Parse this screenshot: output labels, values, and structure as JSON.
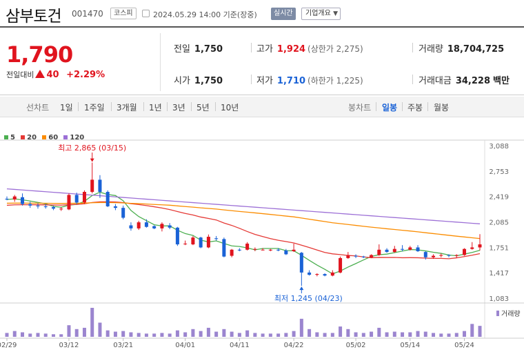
{
  "header": {
    "name": "삼부토건",
    "code": "001470",
    "market": "코스피",
    "date": "2024.05.29 14:00 기준(장중)",
    "realtime": "실시간",
    "corp_menu": "기업개요"
  },
  "quote": {
    "price": "1,790",
    "diff_label": "전일대비",
    "diff": "40",
    "rate": "+2.29%",
    "prev_close": {
      "label": "전일",
      "value": "1,750"
    },
    "open": {
      "label": "시가",
      "value": "1,750"
    },
    "high": {
      "label": "고가",
      "value": "1,924",
      "sub": "(상한가 2,275)"
    },
    "low": {
      "label": "저가",
      "value": "1,710",
      "sub": "(하한가 1,225)"
    },
    "volume": {
      "label": "거래량",
      "value": "18,704,725"
    },
    "amount": {
      "label": "거래대금",
      "value": "34,228",
      "unit": "백만"
    },
    "up_color": "#e0141e",
    "down_color": "#1a62d6"
  },
  "tabs": {
    "line_label": "선차트",
    "line": [
      "1일",
      "1주일",
      "3개월",
      "1년",
      "3년",
      "5년",
      "10년"
    ],
    "candle_label": "봉차트",
    "candle": [
      "일봉",
      "주봉",
      "월봉"
    ],
    "active": "일봉"
  },
  "chart_data": {
    "type": "candlestick",
    "legend": [
      {
        "label": "5",
        "color": "#4caf50"
      },
      {
        "label": "20",
        "color": "#e53935"
      },
      {
        "label": "60",
        "color": "#fb8c00"
      },
      {
        "label": "120",
        "color": "#9c6fd6"
      }
    ],
    "y_ticks": [
      "3,088",
      "2,753",
      "2,419",
      "2,085",
      "1,751",
      "1,417",
      "1,083"
    ],
    "y_range": [
      1083,
      3088
    ],
    "x_ticks": [
      "02/29",
      "03/12",
      "03/21",
      "04/01",
      "04/11",
      "04/22",
      "05/02",
      "05/14",
      "05/24"
    ],
    "high_annotation": "최고 2,865 (03/15)",
    "low_annotation": "최저 1,245 (04/23)",
    "volume_label": "거래량",
    "candles": [
      [
        2390,
        2420,
        2370,
        2380
      ],
      [
        2380,
        2440,
        2350,
        2420
      ],
      [
        2410,
        2460,
        2300,
        2320
      ],
      [
        2320,
        2350,
        2270,
        2300
      ],
      [
        2300,
        2330,
        2260,
        2290
      ],
      [
        2290,
        2320,
        2260,
        2280
      ],
      [
        2280,
        2300,
        2240,
        2260
      ],
      [
        2250,
        2280,
        2230,
        2260
      ],
      [
        2250,
        2460,
        2240,
        2440
      ],
      [
        2440,
        2470,
        2320,
        2340
      ],
      [
        2340,
        2500,
        2320,
        2480
      ],
      [
        2480,
        2865,
        2460,
        2640
      ],
      [
        2640,
        2700,
        2400,
        2480
      ],
      [
        2480,
        2500,
        2280,
        2290
      ],
      [
        2290,
        2320,
        2240,
        2270
      ],
      [
        2270,
        2300,
        2120,
        2140
      ],
      [
        2040,
        2080,
        1970,
        2000
      ],
      [
        2000,
        2100,
        1980,
        2080
      ],
      [
        2080,
        2120,
        2010,
        2020
      ],
      [
        2030,
        2040,
        1990,
        2000
      ],
      [
        2000,
        2080,
        1960,
        2060
      ],
      [
        2040,
        2070,
        1990,
        2010
      ],
      [
        2010,
        2020,
        1770,
        1790
      ],
      [
        1800,
        1840,
        1780,
        1800
      ],
      [
        1790,
        1900,
        1780,
        1880
      ],
      [
        1880,
        1890,
        1740,
        1750
      ],
      [
        1750,
        1920,
        1740,
        1890
      ],
      [
        1870,
        1900,
        1840,
        1860
      ],
      [
        1860,
        1880,
        1620,
        1630
      ],
      [
        1640,
        1730,
        1620,
        1720
      ],
      [
        1720,
        1740,
        1700,
        1710
      ],
      [
        1720,
        1820,
        1710,
        1800
      ],
      [
        1720,
        1750,
        1700,
        1730
      ],
      [
        1720,
        1740,
        1710,
        1720
      ],
      [
        1710,
        1730,
        1700,
        1720
      ],
      [
        1720,
        1740,
        1700,
        1710
      ],
      [
        1710,
        1730,
        1650,
        1660
      ],
      [
        1700,
        1800,
        1690,
        1720
      ],
      [
        1680,
        1690,
        1245,
        1420
      ],
      [
        1420,
        1450,
        1380,
        1390
      ],
      [
        1390,
        1410,
        1370,
        1400
      ],
      [
        1400,
        1410,
        1370,
        1380
      ],
      [
        1380,
        1450,
        1370,
        1420
      ],
      [
        1420,
        1630,
        1410,
        1610
      ],
      [
        1610,
        1690,
        1600,
        1650
      ],
      [
        1640,
        1660,
        1610,
        1630
      ],
      [
        1630,
        1640,
        1610,
        1620
      ],
      [
        1620,
        1660,
        1610,
        1650
      ],
      [
        1650,
        1790,
        1640,
        1720
      ],
      [
        1720,
        1740,
        1680,
        1690
      ],
      [
        1690,
        1770,
        1680,
        1730
      ],
      [
        1730,
        1780,
        1700,
        1720
      ],
      [
        1720,
        1770,
        1710,
        1750
      ],
      [
        1750,
        1780,
        1690,
        1700
      ],
      [
        1690,
        1700,
        1590,
        1620
      ],
      [
        1620,
        1660,
        1600,
        1640
      ],
      [
        1640,
        1670,
        1620,
        1650
      ],
      [
        1650,
        1660,
        1620,
        1640
      ],
      [
        1640,
        1660,
        1610,
        1650
      ],
      [
        1650,
        1740,
        1640,
        1730
      ],
      [
        1730,
        1820,
        1720,
        1750
      ],
      [
        1750,
        1924,
        1710,
        1790
      ]
    ],
    "volumes": [
      6,
      9,
      7,
      5,
      6,
      5,
      4,
      4,
      18,
      12,
      14,
      45,
      22,
      10,
      8,
      9,
      7,
      6,
      5,
      5,
      6,
      5,
      10,
      7,
      12,
      9,
      14,
      8,
      12,
      8,
      6,
      10,
      6,
      5,
      5,
      5,
      6,
      9,
      28,
      12,
      7,
      6,
      6,
      16,
      12,
      7,
      6,
      8,
      14,
      7,
      8,
      7,
      7,
      9,
      8,
      6,
      5,
      5,
      6,
      9,
      20,
      17
    ]
  }
}
